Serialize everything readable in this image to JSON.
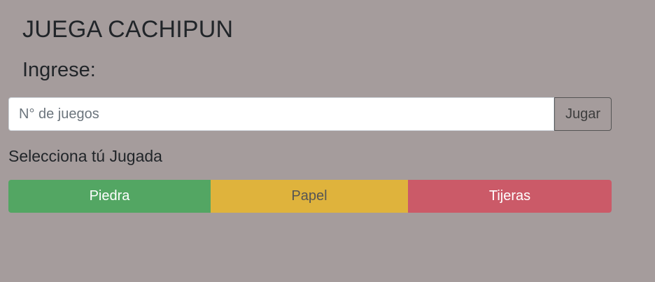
{
  "header": {
    "title": "JUEGA CACHIPUN",
    "subtitle": "Ingrese:"
  },
  "games_form": {
    "placeholder": "N° de juegos",
    "value": "",
    "play_label": "Jugar"
  },
  "choices": {
    "label": "Selecciona tú Jugada",
    "items": [
      {
        "label": "Piedra",
        "color": "#53a663"
      },
      {
        "label": "Papel",
        "color": "#dfb33c"
      },
      {
        "label": "Tijeras",
        "color": "#cb5a68"
      }
    ]
  },
  "colors": {
    "background": "#a59c9c",
    "text": "#212529"
  }
}
